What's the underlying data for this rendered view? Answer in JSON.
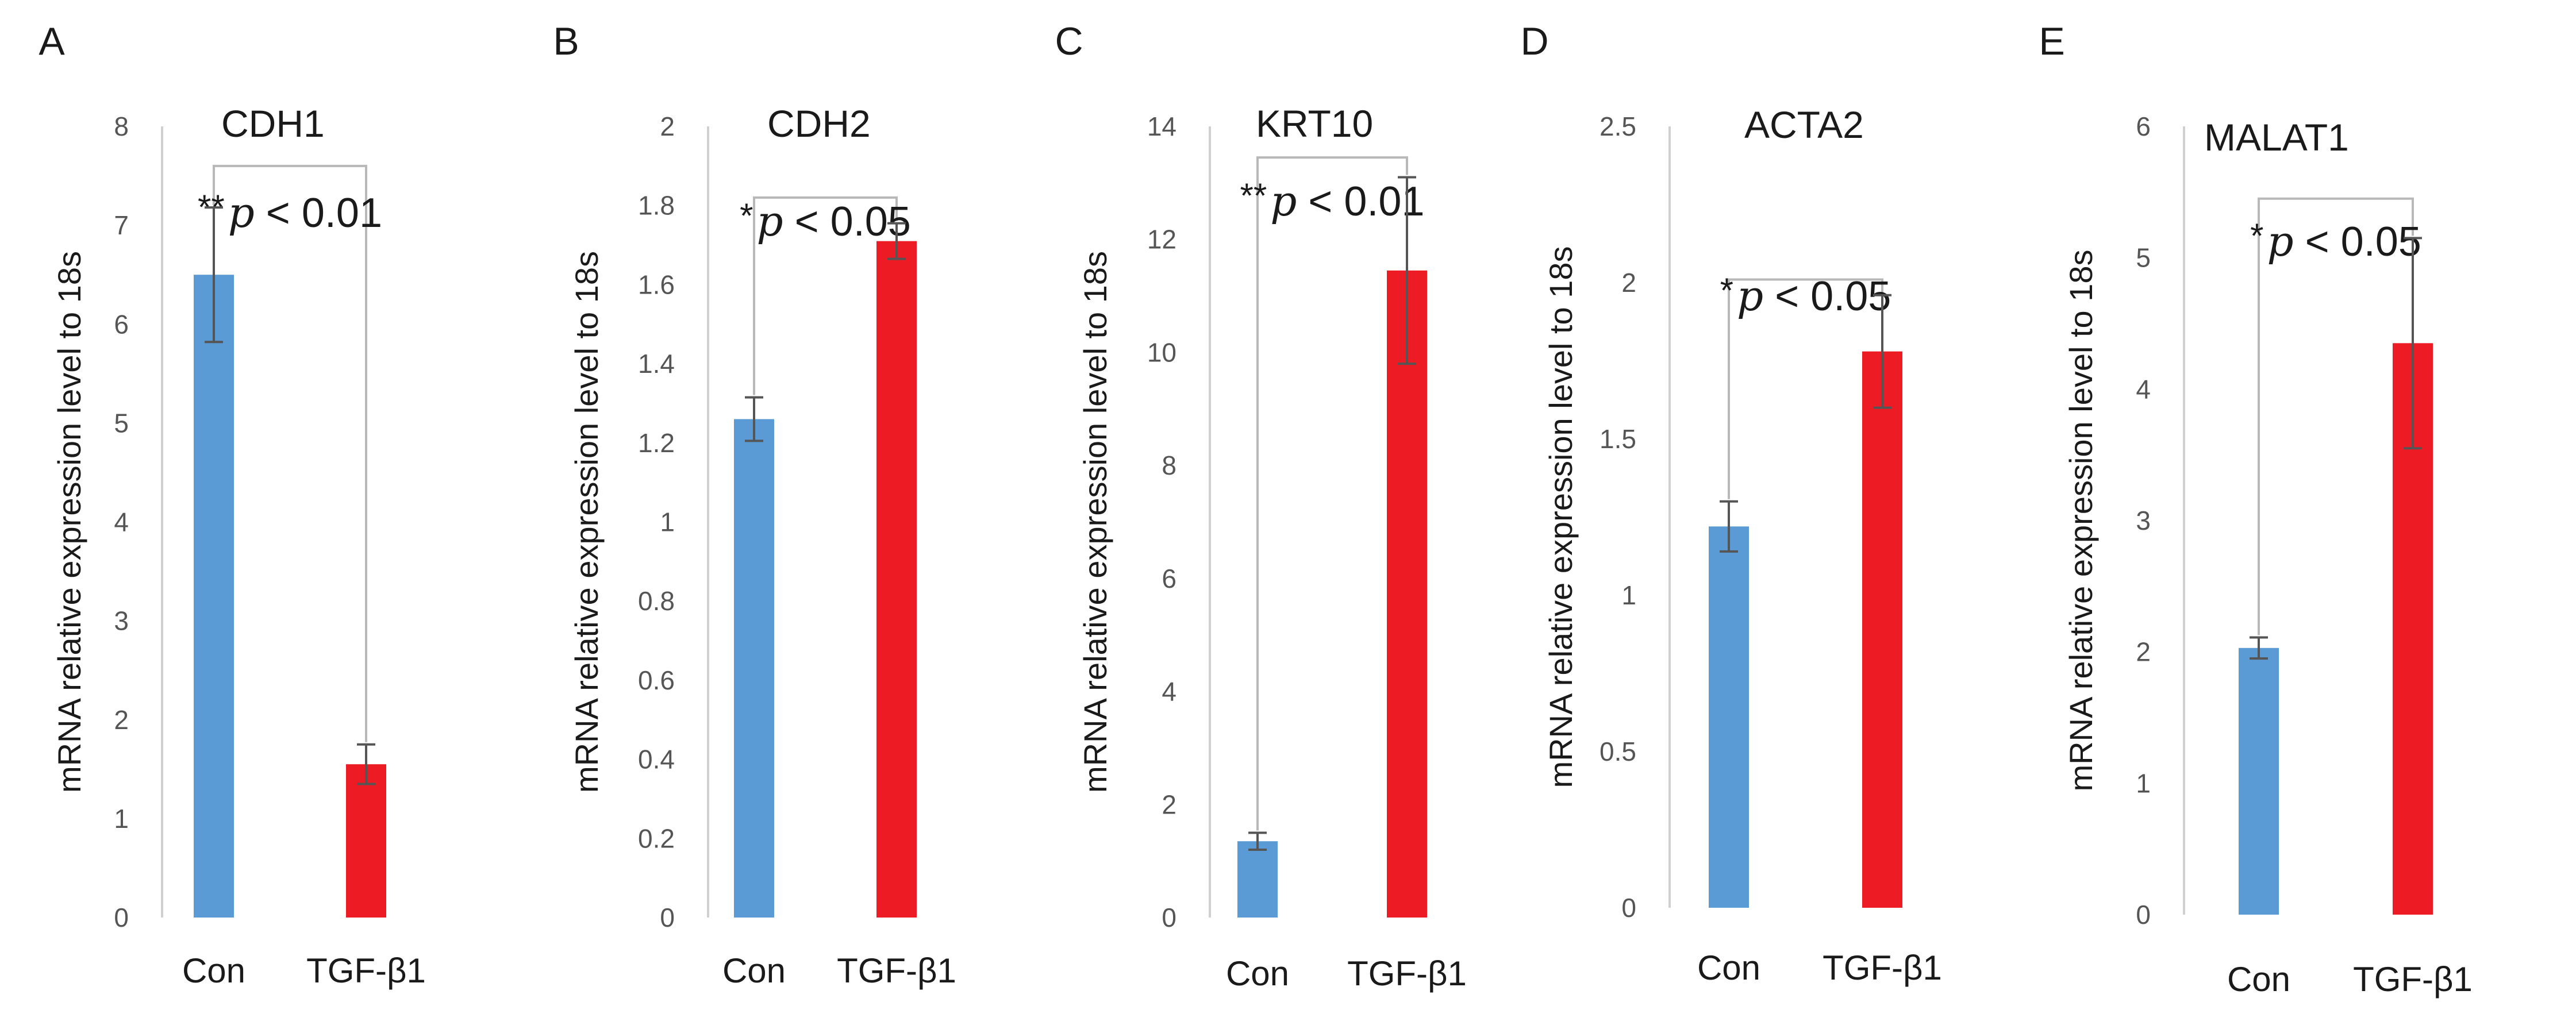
{
  "colors": {
    "con": "#5b9bd5",
    "tgf": "#ed1c24",
    "axis": "#d0d0d0",
    "error": "#555555",
    "bracket": "#b8b8b8"
  },
  "chart_data": [
    {
      "type": "bar",
      "panel": "A",
      "title": "CDH1",
      "ylabel": "mRNA relative expression level to 18s",
      "categories": [
        "Con",
        "TGF-β1"
      ],
      "values": [
        6.5,
        1.55
      ],
      "errors": [
        0.68,
        0.2
      ],
      "ylim": [
        0,
        8
      ],
      "yticks": [
        0,
        1,
        2,
        3,
        4,
        5,
        6,
        7,
        8
      ],
      "yticklabels": [
        "0",
        "1",
        "2",
        "3",
        "4",
        "5",
        "6",
        "7",
        "8"
      ],
      "sig_stars": "**",
      "sig_p": "p",
      "sig_rest": " < 0.01",
      "bracket_y": 7.6
    },
    {
      "type": "bar",
      "panel": "B",
      "title": "CDH2",
      "ylabel": "mRNA relative expression level to 18s",
      "categories": [
        "Con",
        "TGF-β1"
      ],
      "values": [
        1.26,
        1.71
      ],
      "errors": [
        0.055,
        0.045
      ],
      "ylim": [
        0,
        2
      ],
      "yticks": [
        0,
        0.2,
        0.4,
        0.6,
        0.8,
        1,
        1.2,
        1.4,
        1.6,
        1.8,
        2
      ],
      "yticklabels": [
        "0",
        "0.2",
        "0.4",
        "0.6",
        "0.8",
        "1",
        "1.2",
        "1.4",
        "1.6",
        "1.8",
        "2"
      ],
      "sig_stars": "*",
      "sig_p": "p",
      "sig_rest": " < 0.05",
      "bracket_y": 1.82
    },
    {
      "type": "bar",
      "panel": "C",
      "title": "KRT10",
      "ylabel": "mRNA relative expression level to 18s",
      "categories": [
        "Con",
        "TGF-β1"
      ],
      "values": [
        1.35,
        11.45
      ],
      "errors": [
        0.15,
        1.65
      ],
      "ylim": [
        0,
        14
      ],
      "yticks": [
        0,
        2,
        4,
        6,
        8,
        10,
        12,
        14
      ],
      "yticklabels": [
        "0",
        "2",
        "4",
        "6",
        "8",
        "10",
        "12",
        "14"
      ],
      "sig_stars": "**",
      "sig_p": "p",
      "sig_rest": " < 0.01",
      "bracket_y": 13.45
    },
    {
      "type": "bar",
      "panel": "D",
      "title": "ACTA2",
      "ylabel": "mRNA relative expression level to 18s",
      "categories": [
        "Con",
        "TGF-β1"
      ],
      "values": [
        1.22,
        1.78
      ],
      "errors": [
        0.08,
        0.18
      ],
      "ylim": [
        0,
        2.5
      ],
      "yticks": [
        0,
        0.5,
        1,
        1.5,
        2,
        2.5
      ],
      "yticklabels": [
        "0",
        "0.5",
        "1",
        "1.5",
        "2",
        "2.5"
      ],
      "sig_stars": "*",
      "sig_p": "p",
      "sig_rest": " < 0.05",
      "bracket_y": 2.01
    },
    {
      "type": "bar",
      "panel": "E",
      "title": "MALAT1",
      "ylabel": "mRNA relative expression level to 18s",
      "categories": [
        "Con",
        "TGF-β1"
      ],
      "values": [
        2.03,
        4.35
      ],
      "errors": [
        0.08,
        0.8
      ],
      "ylim": [
        0,
        6
      ],
      "yticks": [
        0,
        1,
        2,
        3,
        4,
        5,
        6
      ],
      "yticklabels": [
        "0",
        "1",
        "2",
        "3",
        "4",
        "5",
        "6"
      ],
      "sig_stars": "*",
      "sig_p": "p",
      "sig_rest": " < 0.05",
      "bracket_y": 5.45
    }
  ]
}
